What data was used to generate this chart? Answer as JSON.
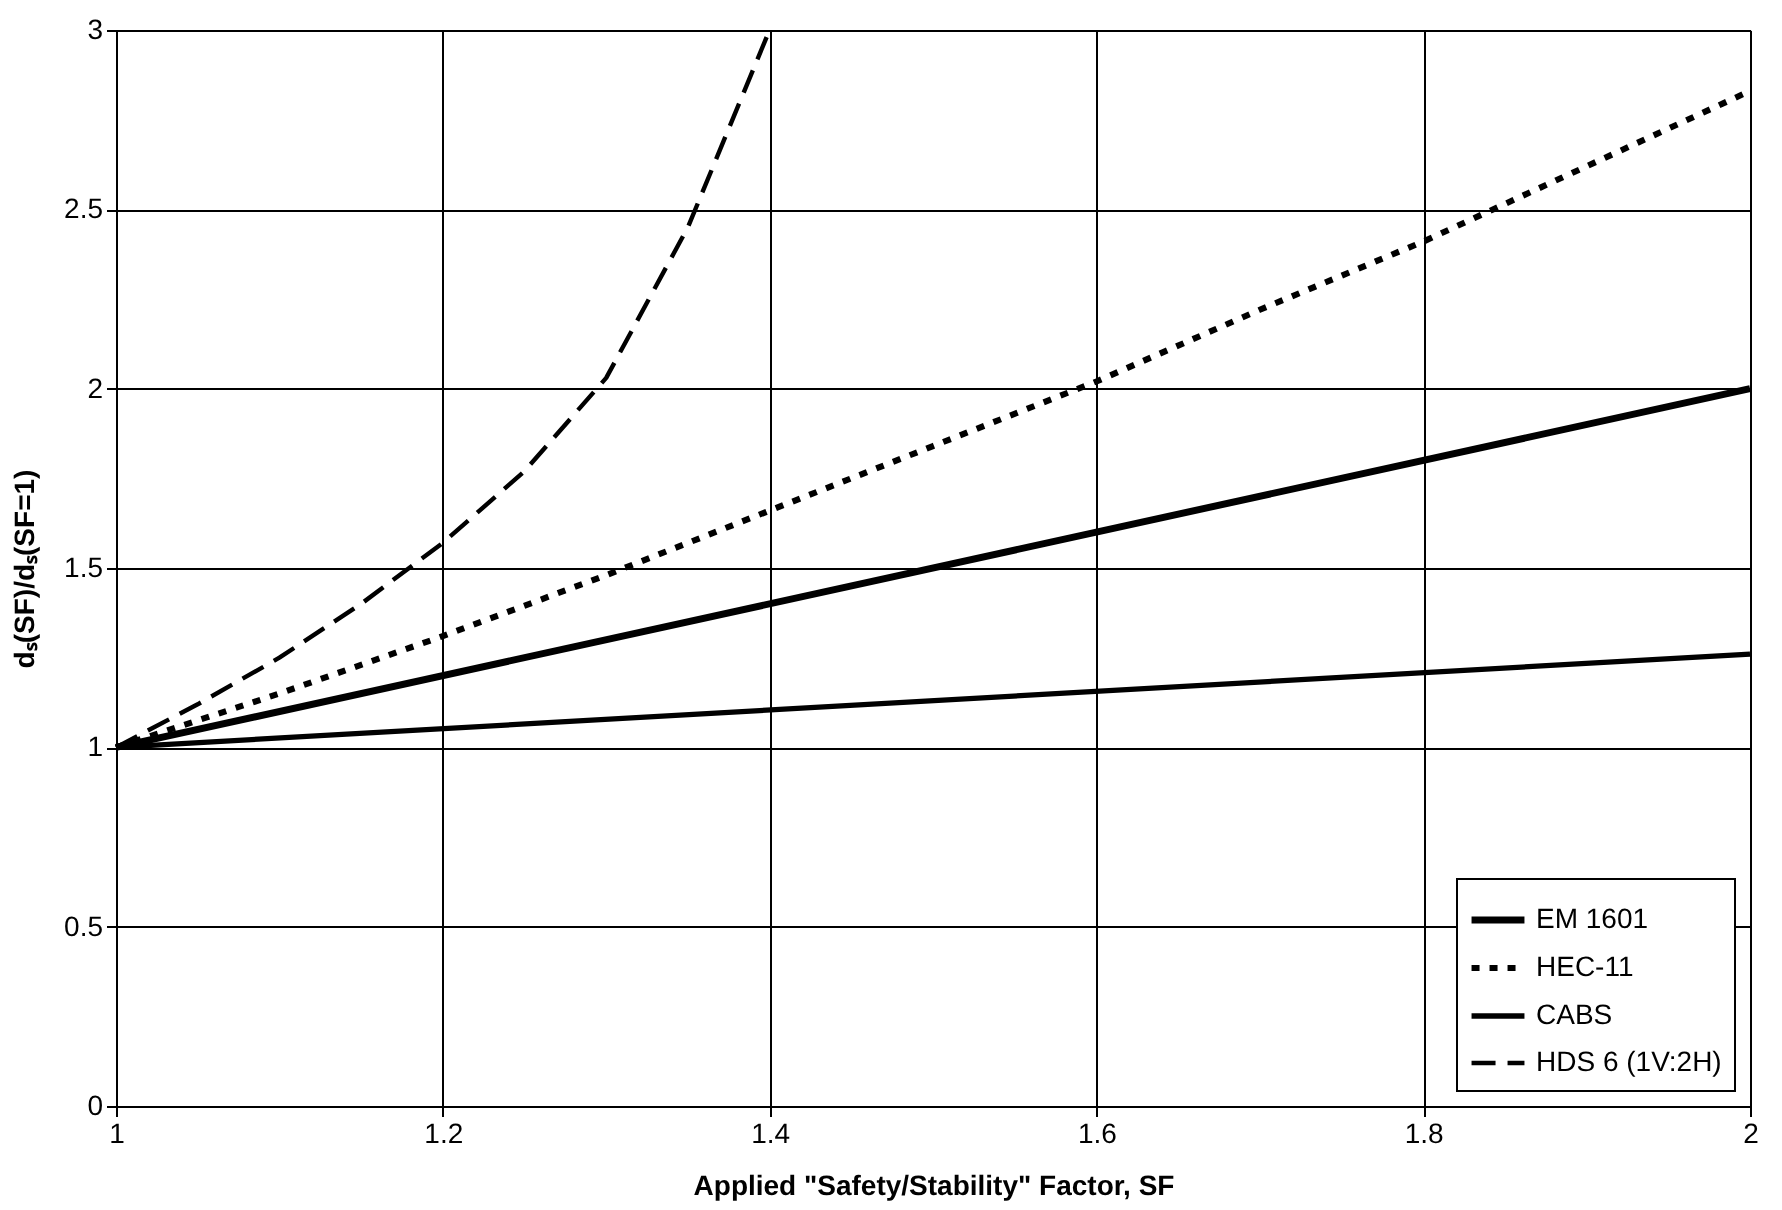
{
  "chart_data": {
    "type": "line",
    "xlabel": "Applied \"Safety/Stability\" Factor, SF",
    "ylabel": "dₛ(SF)/dₛ(SF=1)",
    "xlim": [
      1,
      2
    ],
    "ylim": [
      0,
      3
    ],
    "xticks": [
      1,
      1.2,
      1.4,
      1.6,
      1.8,
      2
    ],
    "yticks": [
      0,
      0.5,
      1,
      1.5,
      2,
      2.5,
      3
    ],
    "grid": true,
    "legend": "bottom right",
    "marker": "none",
    "series": [
      {
        "name": "EM 1601",
        "color": "#000000",
        "line_style": "solid",
        "x": [
          1,
          2
        ],
        "values": [
          1,
          2
        ]
      },
      {
        "name": "HEC-11",
        "color": "#000000",
        "line_style": "dotted",
        "x": [
          1,
          1.1,
          1.2,
          1.3,
          1.4,
          1.5,
          1.6,
          1.7,
          1.8,
          1.9,
          2
        ],
        "values": [
          1,
          1.15,
          1.31,
          1.48,
          1.66,
          1.84,
          2.02,
          2.22,
          2.41,
          2.62,
          2.83
        ]
      },
      {
        "name": "CABS",
        "color": "#000000",
        "line_style": "solid",
        "x": [
          1,
          2
        ],
        "values": [
          1,
          1.26
        ]
      },
      {
        "name": "HDS 6 (1V:2H)",
        "color": "#000000",
        "line_style": "dashed",
        "x": [
          1,
          1.05,
          1.1,
          1.15,
          1.2,
          1.25,
          1.3,
          1.35,
          1.4
        ],
        "values": [
          1,
          1.12,
          1.25,
          1.4,
          1.57,
          1.77,
          2.03,
          2.45,
          3.0
        ]
      }
    ]
  }
}
